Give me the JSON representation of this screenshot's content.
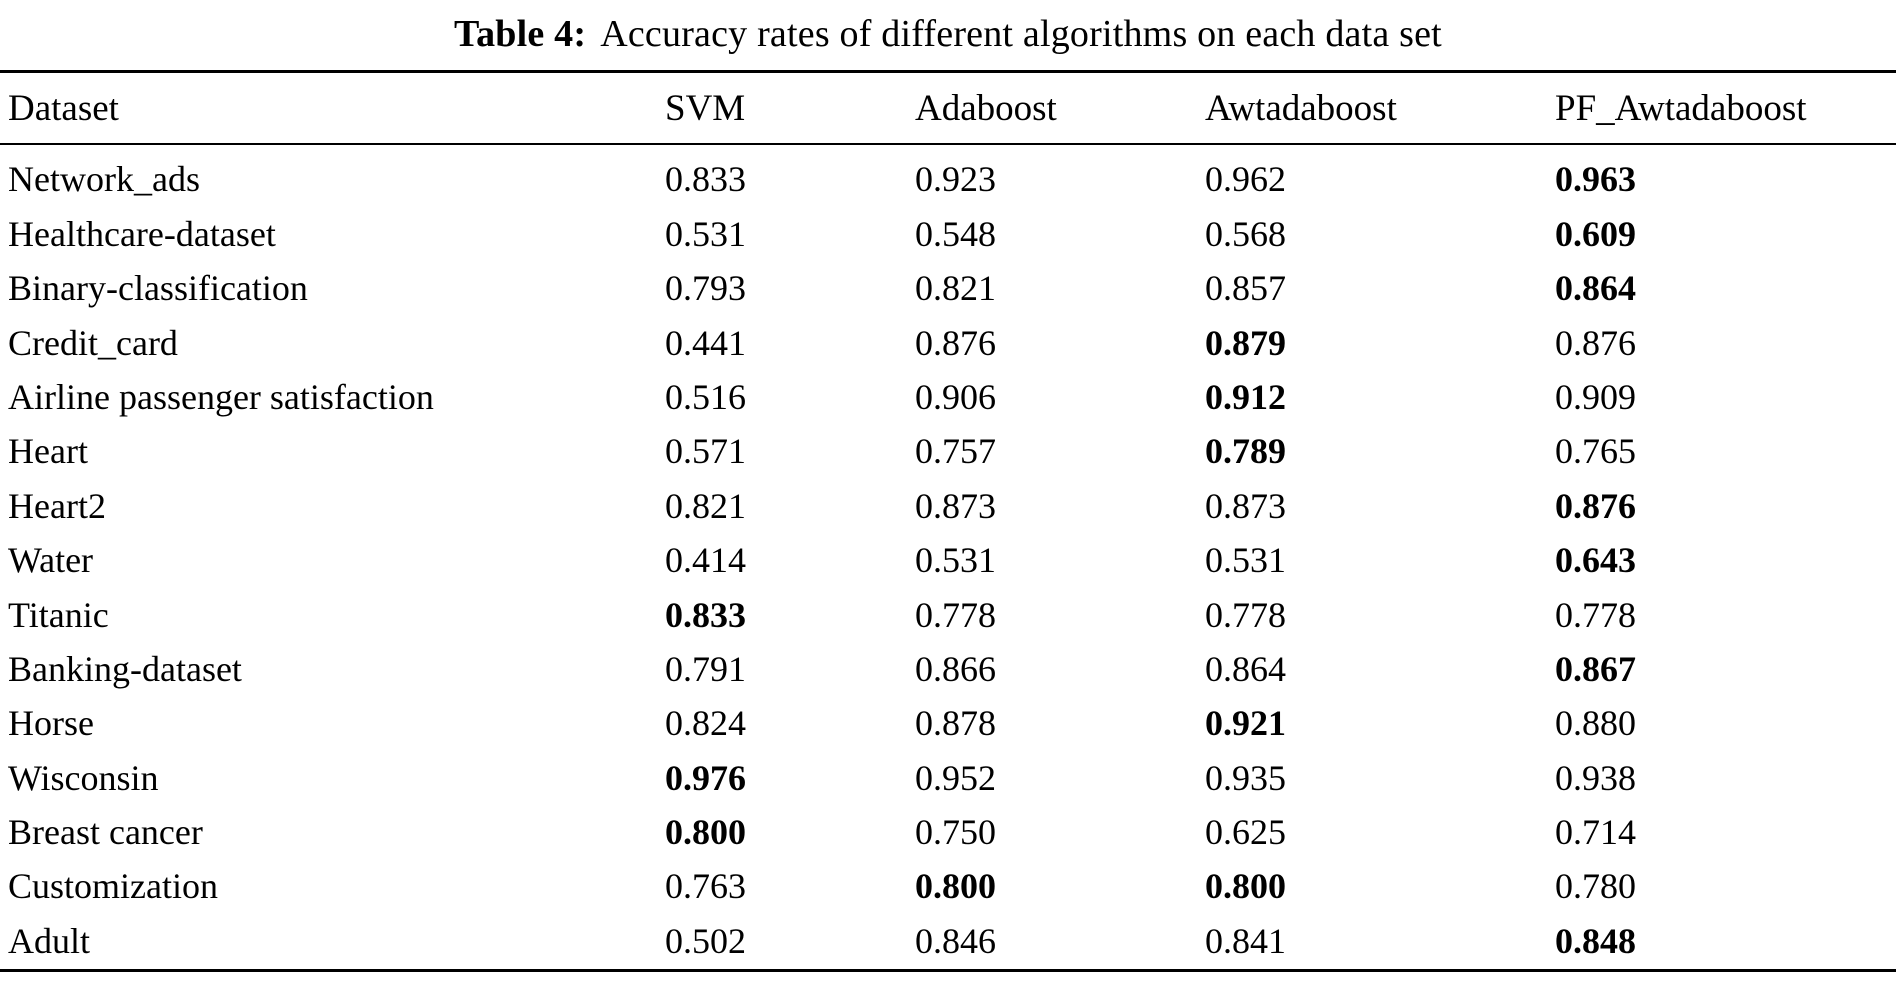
{
  "caption": {
    "label": "Table 4:",
    "text": "Accuracy rates of different algorithms on each data set"
  },
  "table": {
    "headers": [
      "Dataset",
      "SVM",
      "Adaboost",
      "Awtadaboost",
      "PF_Awtadaboost"
    ],
    "rows": [
      {
        "dataset": "Network_ads",
        "values": [
          "0.833",
          "0.923",
          "0.962",
          "0.963"
        ],
        "bold": [
          false,
          false,
          false,
          true
        ]
      },
      {
        "dataset": "Healthcare-dataset",
        "values": [
          "0.531",
          "0.548",
          "0.568",
          "0.609"
        ],
        "bold": [
          false,
          false,
          false,
          true
        ]
      },
      {
        "dataset": "Binary-classification",
        "values": [
          "0.793",
          "0.821",
          "0.857",
          "0.864"
        ],
        "bold": [
          false,
          false,
          false,
          true
        ]
      },
      {
        "dataset": "Credit_card",
        "values": [
          "0.441",
          "0.876",
          "0.879",
          "0.876"
        ],
        "bold": [
          false,
          false,
          true,
          false
        ]
      },
      {
        "dataset": "Airline passenger satisfaction",
        "values": [
          "0.516",
          "0.906",
          "0.912",
          "0.909"
        ],
        "bold": [
          false,
          false,
          true,
          false
        ]
      },
      {
        "dataset": "Heart",
        "values": [
          "0.571",
          "0.757",
          "0.789",
          "0.765"
        ],
        "bold": [
          false,
          false,
          true,
          false
        ]
      },
      {
        "dataset": "Heart2",
        "values": [
          "0.821",
          "0.873",
          "0.873",
          "0.876"
        ],
        "bold": [
          false,
          false,
          false,
          true
        ]
      },
      {
        "dataset": "Water",
        "values": [
          "0.414",
          "0.531",
          "0.531",
          "0.643"
        ],
        "bold": [
          false,
          false,
          false,
          true
        ]
      },
      {
        "dataset": "Titanic",
        "values": [
          "0.833",
          "0.778",
          "0.778",
          "0.778"
        ],
        "bold": [
          true,
          false,
          false,
          false
        ]
      },
      {
        "dataset": "Banking-dataset",
        "values": [
          "0.791",
          "0.866",
          "0.864",
          "0.867"
        ],
        "bold": [
          false,
          false,
          false,
          true
        ]
      },
      {
        "dataset": "Horse",
        "values": [
          "0.824",
          "0.878",
          "0.921",
          "0.880"
        ],
        "bold": [
          false,
          false,
          true,
          false
        ]
      },
      {
        "dataset": "Wisconsin",
        "values": [
          "0.976",
          "0.952",
          "0.935",
          "0.938"
        ],
        "bold": [
          true,
          false,
          false,
          false
        ]
      },
      {
        "dataset": "Breast cancer",
        "values": [
          "0.800",
          "0.750",
          "0.625",
          "0.714"
        ],
        "bold": [
          true,
          false,
          false,
          false
        ]
      },
      {
        "dataset": "Customization",
        "values": [
          "0.763",
          "0.800",
          "0.800",
          "0.780"
        ],
        "bold": [
          false,
          true,
          true,
          false
        ]
      },
      {
        "dataset": "Adult",
        "values": [
          "0.502",
          "0.846",
          "0.841",
          "0.848"
        ],
        "bold": [
          false,
          false,
          false,
          true
        ]
      }
    ]
  }
}
